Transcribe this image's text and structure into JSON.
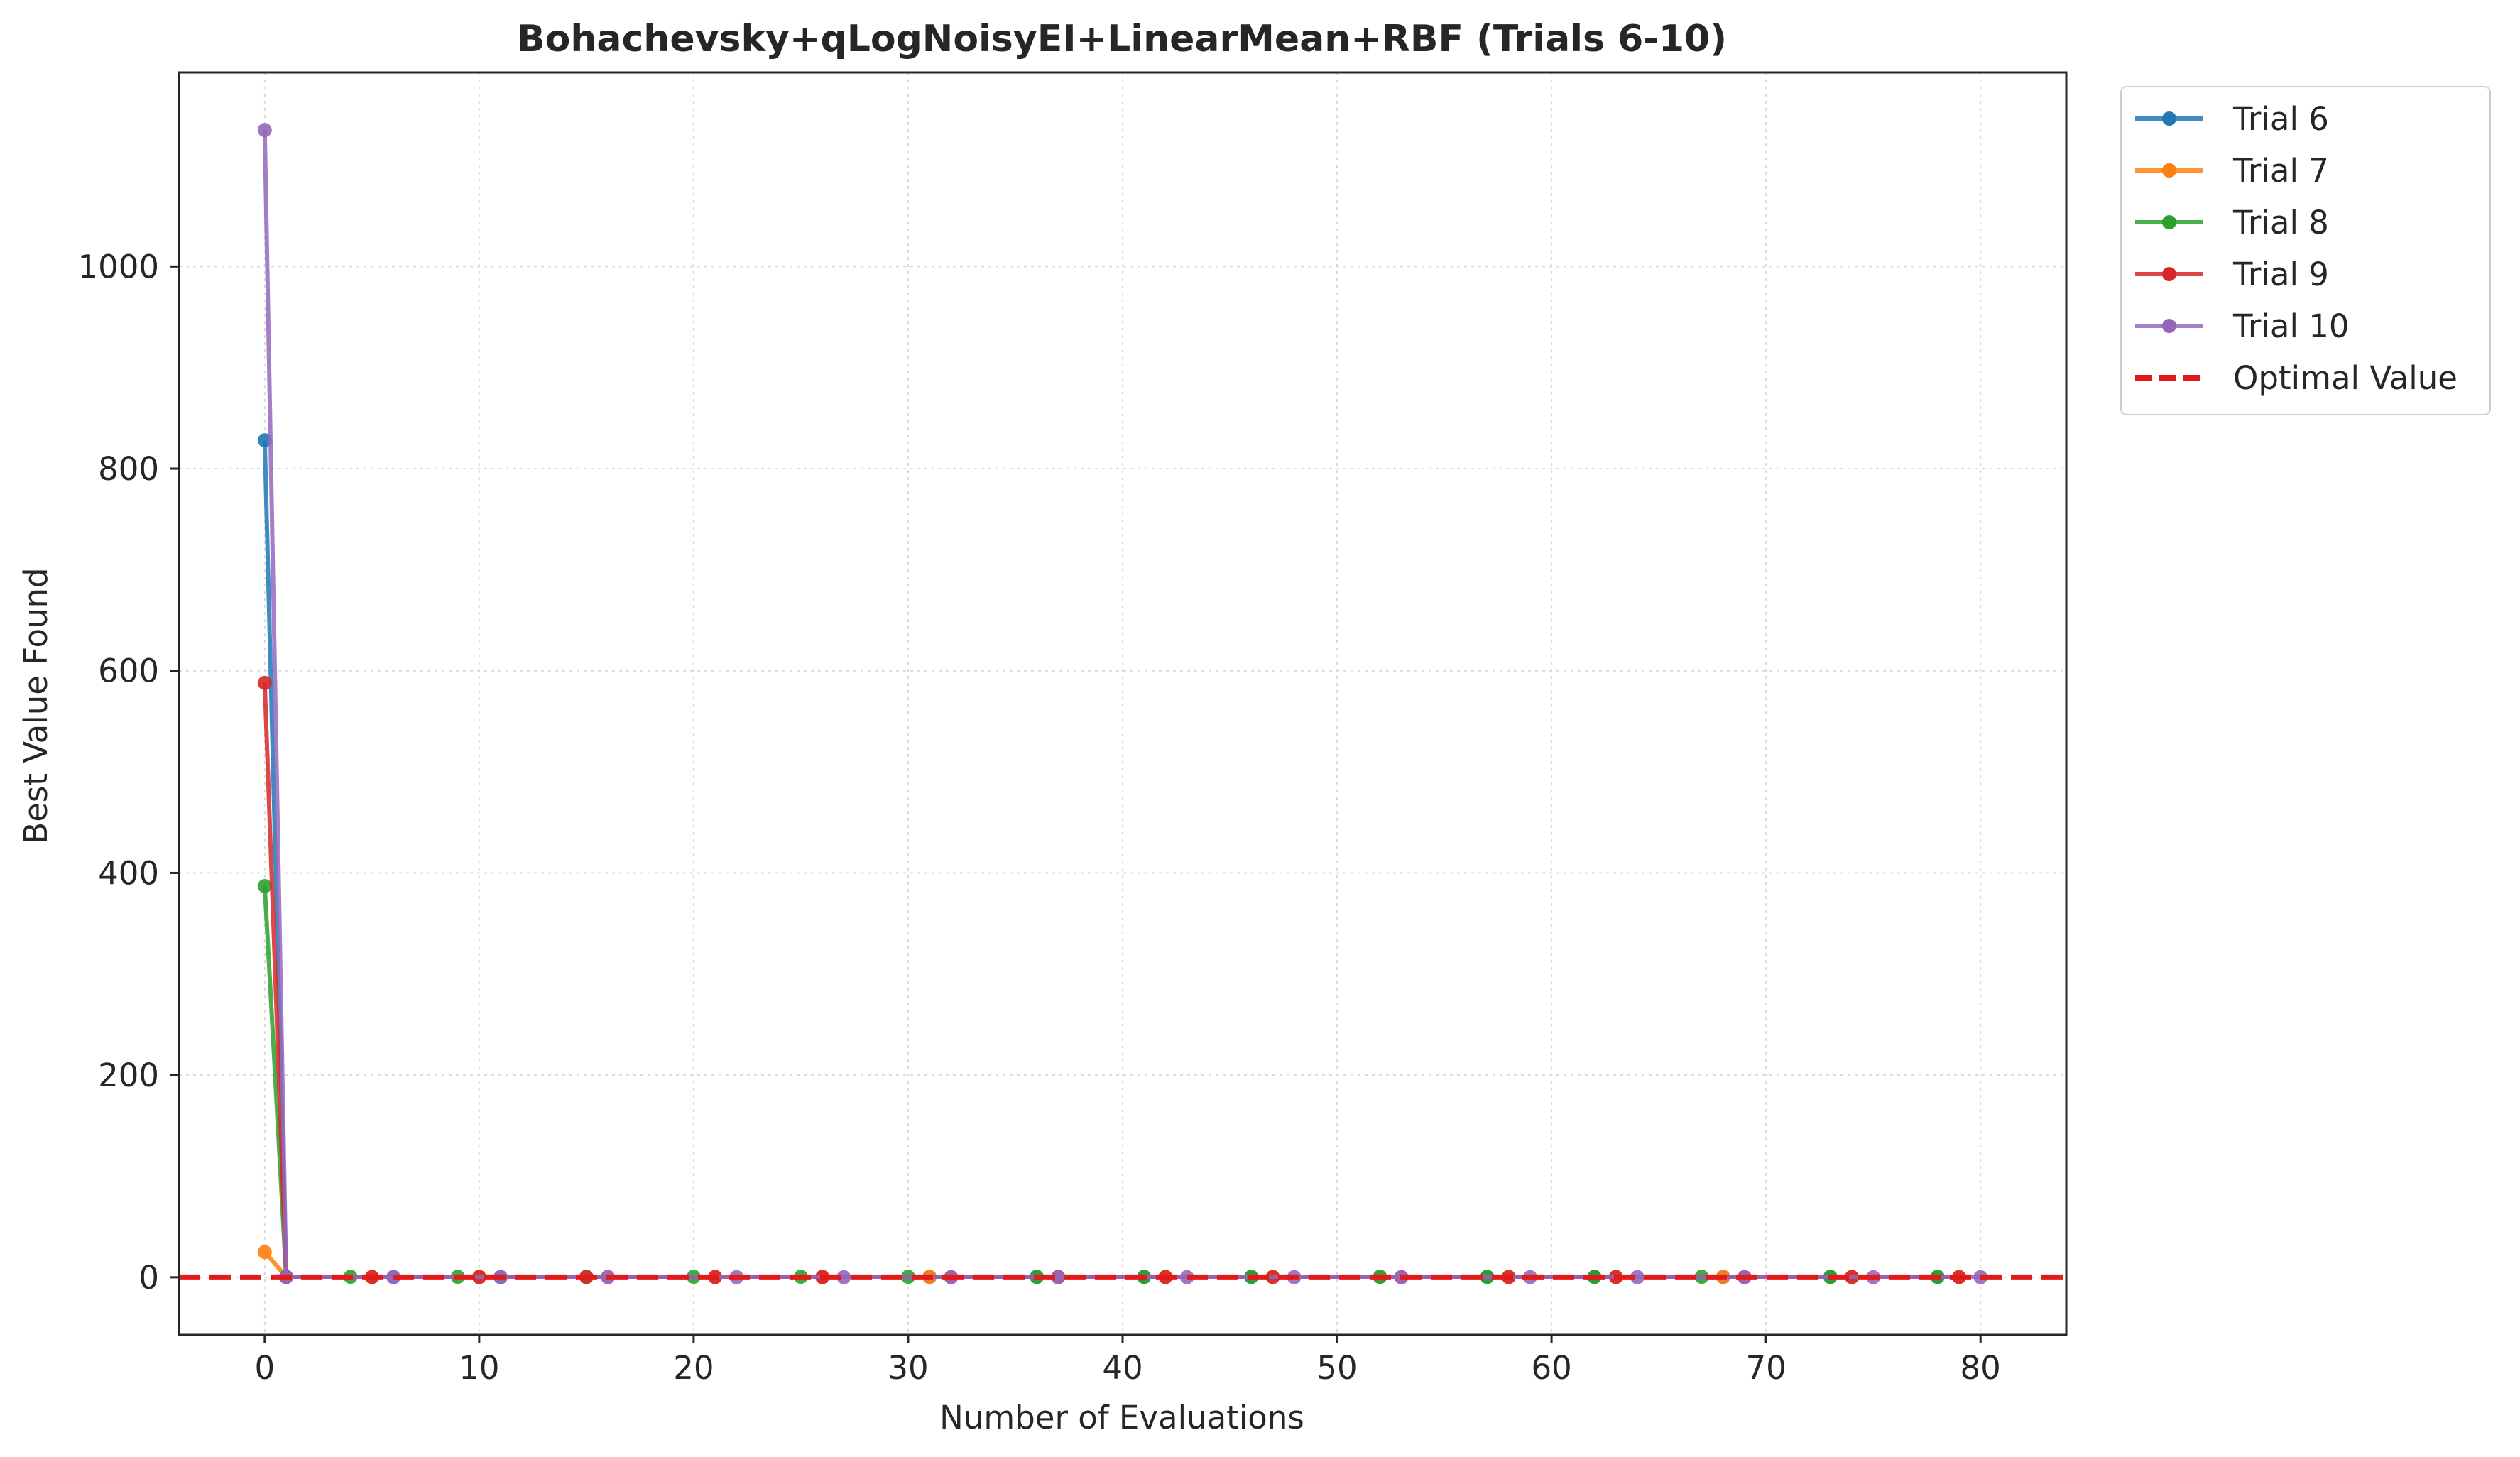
{
  "chart_data": {
    "type": "line",
    "title": "Bohachevsky+qLogNoisyEI+LinearMean+RBF (Trials 6-10)",
    "xlabel": "Number of Evaluations",
    "ylabel": "Best Value Found",
    "xlim": [
      -4,
      84
    ],
    "ylim": [
      -57,
      1192
    ],
    "xticks": [
      0,
      10,
      20,
      30,
      40,
      50,
      60,
      70,
      80
    ],
    "yticks": [
      0,
      200,
      400,
      600,
      800,
      1000
    ],
    "grid": true,
    "legend_position": "outside-top-right",
    "series": [
      {
        "name": "Trial 6",
        "color": "#1f77b4",
        "x": [
          0,
          1,
          6,
          11,
          16,
          21,
          26,
          31,
          36,
          41,
          46,
          52,
          57,
          62,
          68,
          73,
          78
        ],
        "y": [
          828,
          0.4,
          0.3,
          0.3,
          0.3,
          0.3,
          0.3,
          0.3,
          0.3,
          0.3,
          0.3,
          0.3,
          0.3,
          0.3,
          0.3,
          0.3,
          0.3
        ]
      },
      {
        "name": "Trial 7",
        "color": "#ff7f0e",
        "x": [
          0,
          1,
          5,
          10,
          16,
          21,
          26,
          31,
          37,
          42,
          47,
          52,
          58,
          63,
          68,
          74,
          79
        ],
        "y": [
          25,
          0.5,
          0.4,
          0.4,
          0.4,
          0.4,
          0.4,
          0.4,
          0.4,
          0.4,
          0.4,
          0.4,
          0.4,
          0.4,
          0.4,
          0.4,
          0.4
        ]
      },
      {
        "name": "Trial 8",
        "color": "#2ca02c",
        "x": [
          0,
          1,
          4,
          9,
          15,
          20,
          25,
          30,
          36,
          41,
          46,
          52,
          57,
          62,
          67,
          73,
          78
        ],
        "y": [
          387,
          0.6,
          0.5,
          0.5,
          0.5,
          0.5,
          0.5,
          0.5,
          0.5,
          0.5,
          0.5,
          0.5,
          0.5,
          0.5,
          0.5,
          0.5,
          0.5
        ]
      },
      {
        "name": "Trial 9",
        "color": "#d62728",
        "x": [
          0,
          1,
          5,
          10,
          15,
          21,
          26,
          32,
          37,
          42,
          47,
          53,
          58,
          63,
          69,
          74,
          79
        ],
        "y": [
          588,
          0.3,
          0.2,
          0.2,
          0.2,
          0.2,
          0.2,
          0.2,
          0.2,
          0.2,
          0.2,
          0.2,
          0.2,
          0.2,
          0.2,
          0.2,
          0.2
        ]
      },
      {
        "name": "Trial 10",
        "color": "#9467bd",
        "x": [
          0,
          1,
          6,
          11,
          16,
          22,
          27,
          32,
          37,
          43,
          48,
          53,
          59,
          64,
          69,
          75,
          80
        ],
        "y": [
          1135,
          0.2,
          0.1,
          0.1,
          0.1,
          0.1,
          0.1,
          0.1,
          0.1,
          0.1,
          0.1,
          0.1,
          0.1,
          0.1,
          0.1,
          0.1,
          0.1
        ]
      }
    ],
    "reference_line": {
      "name": "Optimal Value",
      "y": 0,
      "color": "#e31a1c",
      "style": "dashed"
    }
  }
}
